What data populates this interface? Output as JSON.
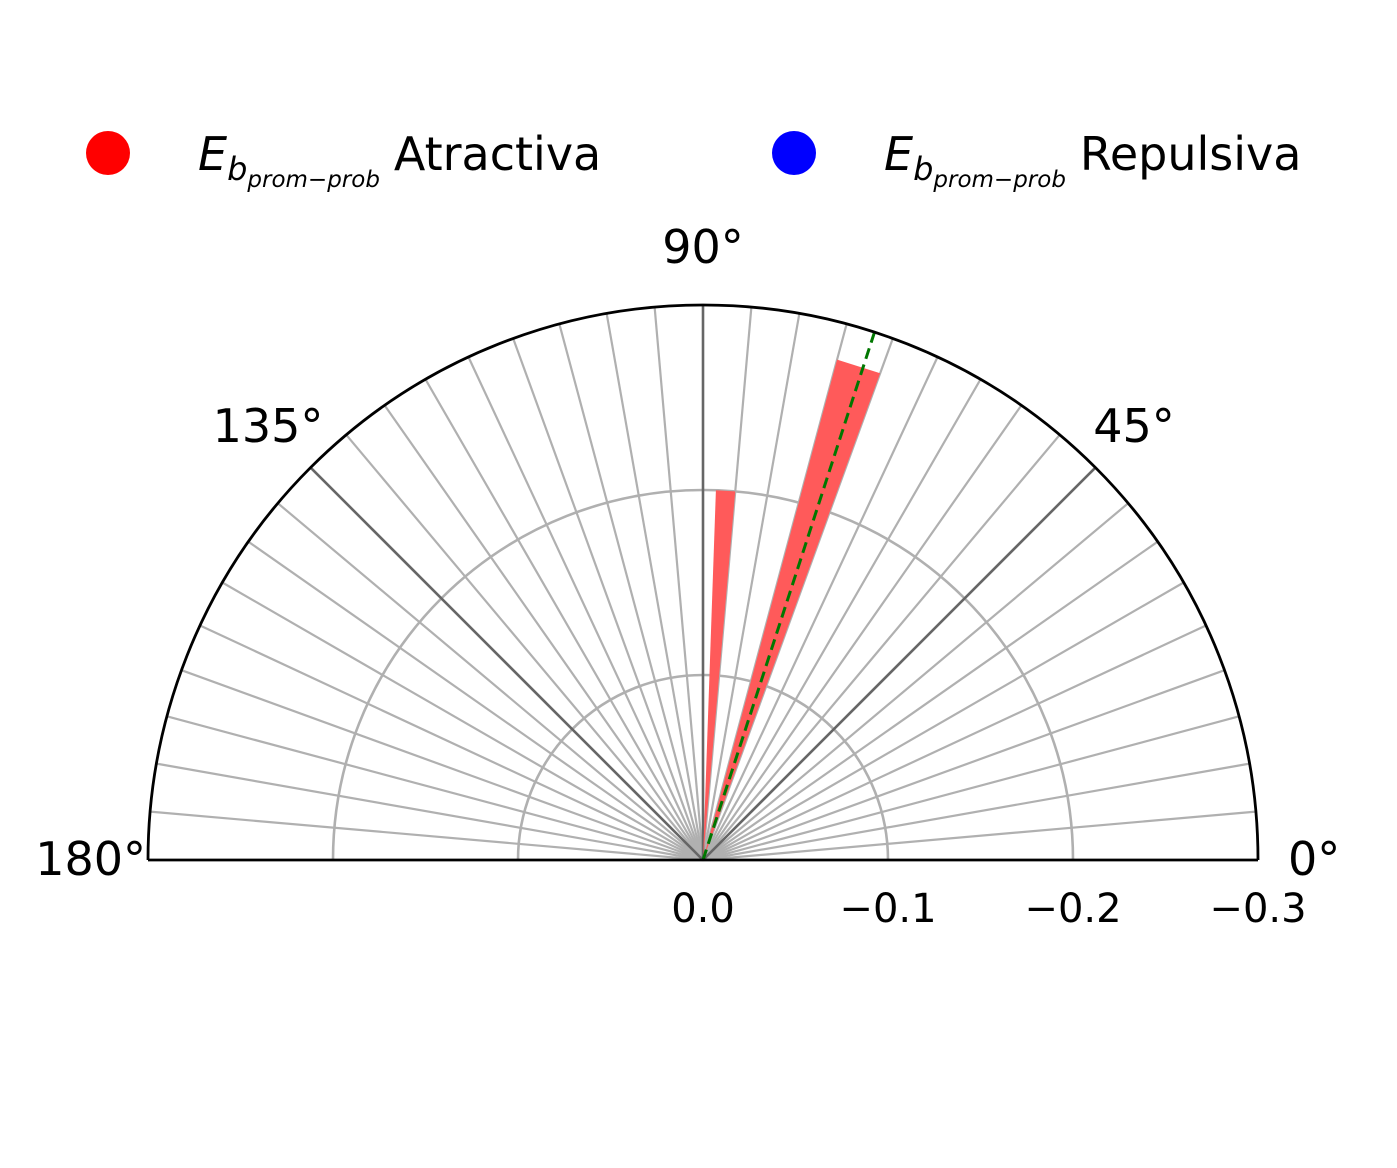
{
  "chart_data": {
    "type": "polar-bar",
    "title": "",
    "theta_range_deg": [
      0,
      180
    ],
    "r_range": [
      0.0,
      -0.3
    ],
    "angle_tick_labels": [
      {
        "angle": 0,
        "label": "0°"
      },
      {
        "angle": 45,
        "label": "45°"
      },
      {
        "angle": 90,
        "label": "90°"
      },
      {
        "angle": 135,
        "label": "135°"
      },
      {
        "angle": 180,
        "label": "180°"
      }
    ],
    "radial_ticks": [
      {
        "value": 0.0,
        "label": "0.0"
      },
      {
        "value": -0.1,
        "label": "−0.1"
      },
      {
        "value": -0.2,
        "label": "−0.2"
      },
      {
        "value": -0.3,
        "label": "−0.3"
      }
    ],
    "angular_gridline_step_deg": 5,
    "grid": true,
    "legend": {
      "placement": "top",
      "items": [
        {
          "symbol": "E",
          "subscript": "b",
          "subsubscript": "prom−prob",
          "text": "Atractiva",
          "color": "#ff0000"
        },
        {
          "symbol": "E",
          "subscript": "b",
          "subsubscript": "prom−prob",
          "text": "Repulsiva",
          "color": "#0000ff"
        }
      ]
    },
    "series": [
      {
        "name": "Atractiva",
        "color": "#ff5a5a",
        "bars": [
          {
            "angle_start": 85,
            "angle_end": 88,
            "value": -0.2
          },
          {
            "angle_start": 70,
            "angle_end": 75,
            "value": -0.28
          }
        ]
      }
    ],
    "reference_line": {
      "angle_deg": 72,
      "color": "#007700",
      "style": "dashed"
    }
  }
}
